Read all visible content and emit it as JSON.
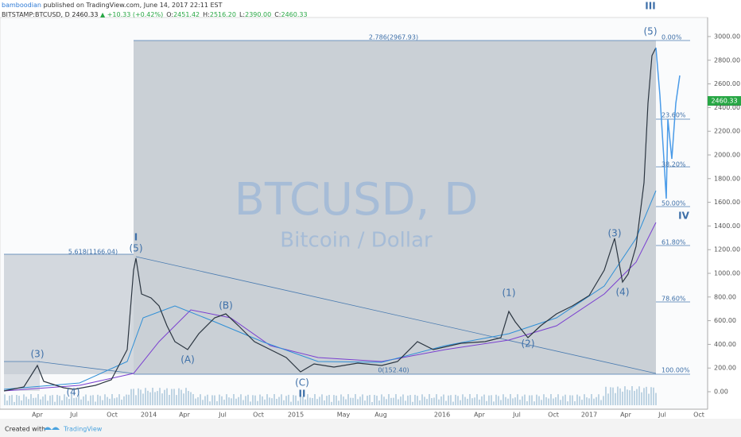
{
  "header": {
    "author": "bamboodian",
    "published": "published on TradingView.com, June 14, 2017 22:11 EST",
    "symbol": "BITSTAMP:BTCUSD, D",
    "last": "2460.33",
    "change": "▲ +10.33 (+0.42%)",
    "ohlc": [
      {
        "key": "O:",
        "value": "2451.42"
      },
      {
        "key": "H:",
        "value": "2516.20"
      },
      {
        "key": "L:",
        "value": "2390.00"
      },
      {
        "key": "C:",
        "value": "2460.33"
      }
    ]
  },
  "watermark": {
    "symbol": "BTCUSD, D",
    "name": "Bitcoin / Dollar"
  },
  "price_tag": "2460.33",
  "price_axis": [
    "3000.00",
    "2800.00",
    "2600.00",
    "2400.00",
    "2200.00",
    "2000.00",
    "1800.00",
    "1600.00",
    "1400.00",
    "1200.00",
    "1000.00",
    "800.00",
    "600.00",
    "400.00",
    "200.00",
    "0.00"
  ],
  "time_axis": [
    "Apr",
    "Jul",
    "Oct",
    "2014",
    "Apr",
    "Jul",
    "Oct",
    "2015",
    "May",
    "Aug",
    "2016",
    "Apr",
    "Jul",
    "Oct",
    "2017",
    "Apr",
    "Jul",
    "Oct"
  ],
  "fib_levels": [
    "0.00%",
    "23.60%",
    "38.20%",
    "50.00%",
    "61.80%",
    "78.60%",
    "100.00%"
  ],
  "extensions": [
    "2.786(2967.93)",
    "5.618(1166.04)",
    "0(152.40)"
  ],
  "waves": [
    "(3)",
    "(4)",
    "I",
    "(5)",
    "(A)",
    "(B)",
    "(C)",
    "II",
    "(1)",
    "(2)",
    "(3)",
    "(4)",
    "III",
    "(5)",
    "IV"
  ],
  "footer": {
    "created": "Created with",
    "brand": "TradingView"
  }
}
